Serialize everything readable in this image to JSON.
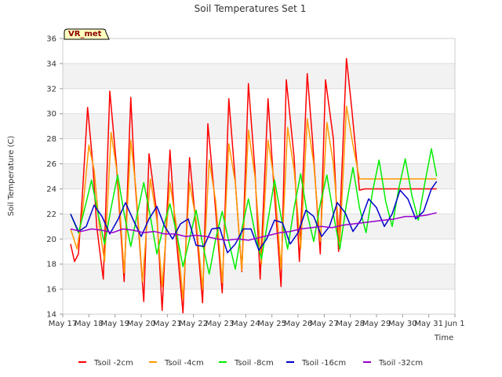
{
  "chart_data": {
    "type": "line",
    "title": "Soil Temperatures Set 1",
    "xlabel": "Time",
    "ylabel": "Soil Temperature (C)",
    "badge": "VR_met",
    "xlim": [
      0,
      15
    ],
    "ylim": [
      14,
      36
    ],
    "x_ticks": [
      {
        "value": 0,
        "label": "May 17"
      },
      {
        "value": 1,
        "label": "May 18"
      },
      {
        "value": 2,
        "label": "May 19"
      },
      {
        "value": 3,
        "label": "May 20"
      },
      {
        "value": 4,
        "label": "May 21"
      },
      {
        "value": 5,
        "label": "May 22"
      },
      {
        "value": 6,
        "label": "May 23"
      },
      {
        "value": 7,
        "label": "May 24"
      },
      {
        "value": 8,
        "label": "May 25"
      },
      {
        "value": 9,
        "label": "May 26"
      },
      {
        "value": 10,
        "label": "May 27"
      },
      {
        "value": 11,
        "label": "May 28"
      },
      {
        "value": 12,
        "label": "May 29"
      },
      {
        "value": 13,
        "label": "May 30"
      },
      {
        "value": 14,
        "label": "May 31"
      },
      {
        "value": 15,
        "label": "Jun 1"
      }
    ],
    "y_ticks": [
      14,
      16,
      18,
      20,
      22,
      24,
      26,
      28,
      30,
      32,
      34,
      36
    ],
    "grid": true,
    "legend_position": "bottom",
    "series": [
      {
        "name": "Tsoil -2cm",
        "color": "#ff0000",
        "x": [
          0.3,
          0.45,
          0.6,
          0.75,
          0.95,
          1.15,
          1.3,
          1.55,
          1.8,
          2.05,
          2.35,
          2.6,
          2.75,
          3.1,
          3.3,
          3.6,
          3.8,
          4.1,
          4.3,
          4.6,
          4.85,
          5.1,
          5.35,
          5.55,
          5.8,
          6.1,
          6.35,
          6.55,
          6.85,
          7.1,
          7.35,
          7.55,
          7.85,
          8.05,
          8.35,
          8.55,
          8.85,
          9.05,
          9.35,
          9.55,
          9.85,
          10.05,
          10.35,
          10.55,
          10.85,
          11.05,
          11.35,
          11.55,
          11.85,
          12.05,
          12.35,
          12.55,
          12.85,
          13.05,
          13.35,
          13.55,
          13.8,
          14.0,
          14.3
        ],
        "values": [
          19.6,
          18.2,
          18.8,
          23.5,
          30.5,
          26.0,
          21.0,
          16.8,
          31.8,
          26.0,
          16.6,
          31.3,
          25.0,
          15.0,
          26.8,
          22.0,
          14.3,
          27.1,
          21.0,
          14.1,
          26.5,
          21.0,
          14.9,
          29.2,
          23.5,
          15.7,
          31.2,
          26.0,
          17.4,
          32.4,
          25.5,
          16.8,
          31.2,
          25.0,
          16.2,
          32.7,
          26.5,
          18.2,
          33.2,
          28.0,
          18.8,
          32.7,
          28.0,
          19.0,
          34.4,
          30.5,
          23.9,
          24.0,
          24.0,
          24.0,
          24.0,
          24.0,
          24.0,
          24.0,
          24.0,
          24.0,
          24.0,
          24.0,
          24.0
        ]
      },
      {
        "name": "Tsoil -4cm",
        "color": "#ff9900",
        "x": [
          0.3,
          0.55,
          0.75,
          1.0,
          1.2,
          1.4,
          1.6,
          1.85,
          2.1,
          2.35,
          2.6,
          2.8,
          3.05,
          3.35,
          3.6,
          3.8,
          4.1,
          4.35,
          4.6,
          4.85,
          5.1,
          5.35,
          5.6,
          5.85,
          6.1,
          6.35,
          6.6,
          6.85,
          7.1,
          7.35,
          7.6,
          7.85,
          8.1,
          8.35,
          8.6,
          8.85,
          9.1,
          9.35,
          9.6,
          9.85,
          10.1,
          10.35,
          10.6,
          10.85,
          11.1,
          11.35,
          11.6,
          11.85,
          12.1,
          12.35,
          12.6,
          12.85,
          13.1,
          13.35,
          13.6,
          13.85,
          14.1,
          14.3
        ],
        "values": [
          20.8,
          19.2,
          22.0,
          27.5,
          25.5,
          21.0,
          18.2,
          28.5,
          25.0,
          17.3,
          27.9,
          24.0,
          16.6,
          24.8,
          21.5,
          16.2,
          24.5,
          21.0,
          15.2,
          24.5,
          21.5,
          16.0,
          26.3,
          23.0,
          16.5,
          27.6,
          24.5,
          17.5,
          28.7,
          25.0,
          18.0,
          27.9,
          24.5,
          17.6,
          28.9,
          25.5,
          19.2,
          29.6,
          26.0,
          19.8,
          29.3,
          26.0,
          19.8,
          30.6,
          27.5,
          24.8,
          24.8,
          24.8,
          24.8,
          24.8,
          24.8,
          24.8,
          24.8,
          24.8,
          24.8,
          24.8,
          24.8,
          24.8
        ]
      },
      {
        "name": "Tsoil -8cm",
        "color": "#00ee00",
        "x": [
          0.3,
          0.6,
          0.85,
          1.1,
          1.35,
          1.6,
          1.85,
          2.1,
          2.35,
          2.6,
          2.85,
          3.1,
          3.35,
          3.6,
          3.85,
          4.1,
          4.35,
          4.6,
          4.85,
          5.1,
          5.35,
          5.6,
          5.85,
          6.1,
          6.35,
          6.6,
          6.85,
          7.1,
          7.35,
          7.6,
          7.85,
          8.1,
          8.35,
          8.6,
          8.85,
          9.1,
          9.35,
          9.6,
          9.85,
          10.1,
          10.35,
          10.6,
          10.85,
          11.1,
          11.35,
          11.6,
          11.85,
          12.1,
          12.35,
          12.6,
          12.85,
          13.1,
          13.35,
          13.6,
          13.85,
          14.1,
          14.3
        ],
        "values": [
          22.0,
          20.5,
          22.5,
          24.7,
          22.0,
          19.6,
          22.5,
          25.1,
          22.0,
          19.4,
          22.0,
          24.5,
          21.8,
          18.8,
          21.0,
          22.8,
          20.5,
          17.8,
          20.0,
          22.3,
          19.6,
          17.2,
          20.0,
          22.2,
          19.8,
          17.6,
          20.8,
          23.2,
          20.5,
          18.4,
          21.5,
          24.7,
          21.8,
          19.2,
          22.5,
          25.2,
          22.0,
          19.8,
          22.8,
          25.1,
          22.0,
          19.2,
          22.8,
          25.7,
          22.5,
          20.5,
          23.8,
          26.3,
          23.0,
          21.0,
          24.0,
          26.4,
          23.5,
          21.5,
          24.5,
          27.2,
          25.0
        ]
      },
      {
        "name": "Tsoil -16cm",
        "color": "#0000cc",
        "x": [
          0.3,
          0.6,
          0.9,
          1.2,
          1.5,
          1.8,
          2.1,
          2.4,
          2.7,
          3.0,
          3.3,
          3.6,
          3.9,
          4.2,
          4.5,
          4.8,
          5.1,
          5.4,
          5.7,
          6.0,
          6.3,
          6.6,
          6.9,
          7.2,
          7.5,
          7.8,
          8.1,
          8.4,
          8.7,
          9.0,
          9.3,
          9.6,
          9.9,
          10.2,
          10.5,
          10.8,
          11.1,
          11.4,
          11.7,
          12.0,
          12.3,
          12.6,
          12.9,
          13.2,
          13.5,
          13.8,
          14.1,
          14.3
        ],
        "values": [
          22.0,
          20.6,
          21.0,
          22.7,
          21.8,
          20.4,
          21.5,
          22.9,
          21.5,
          20.2,
          21.6,
          22.6,
          21.0,
          20.0,
          21.2,
          21.6,
          19.5,
          19.4,
          20.8,
          20.9,
          18.9,
          19.6,
          20.8,
          20.8,
          19.1,
          20.0,
          21.5,
          21.3,
          19.6,
          20.5,
          22.3,
          21.8,
          20.2,
          21.0,
          22.9,
          22.1,
          20.6,
          21.5,
          23.2,
          22.5,
          21.0,
          22.0,
          23.9,
          23.2,
          21.6,
          22.2,
          24.0,
          24.6
        ]
      },
      {
        "name": "Tsoil -32cm",
        "color": "#9900cc",
        "x": [
          0.3,
          0.7,
          1.1,
          1.5,
          1.9,
          2.3,
          2.7,
          3.1,
          3.5,
          3.9,
          4.3,
          4.7,
          5.1,
          5.5,
          5.9,
          6.3,
          6.7,
          7.1,
          7.5,
          7.9,
          8.3,
          8.7,
          9.1,
          9.5,
          9.9,
          10.3,
          10.7,
          11.1,
          11.5,
          11.9,
          12.3,
          12.7,
          13.1,
          13.5,
          13.9,
          14.3
        ],
        "values": [
          20.8,
          20.6,
          20.8,
          20.7,
          20.5,
          20.8,
          20.7,
          20.5,
          20.6,
          20.4,
          20.4,
          20.2,
          20.3,
          20.2,
          20.0,
          19.9,
          20.0,
          19.9,
          20.1,
          20.3,
          20.5,
          20.6,
          20.8,
          20.9,
          21.0,
          20.9,
          21.1,
          21.2,
          21.3,
          21.4,
          21.5,
          21.6,
          21.8,
          21.8,
          21.9,
          22.1
        ]
      }
    ]
  }
}
